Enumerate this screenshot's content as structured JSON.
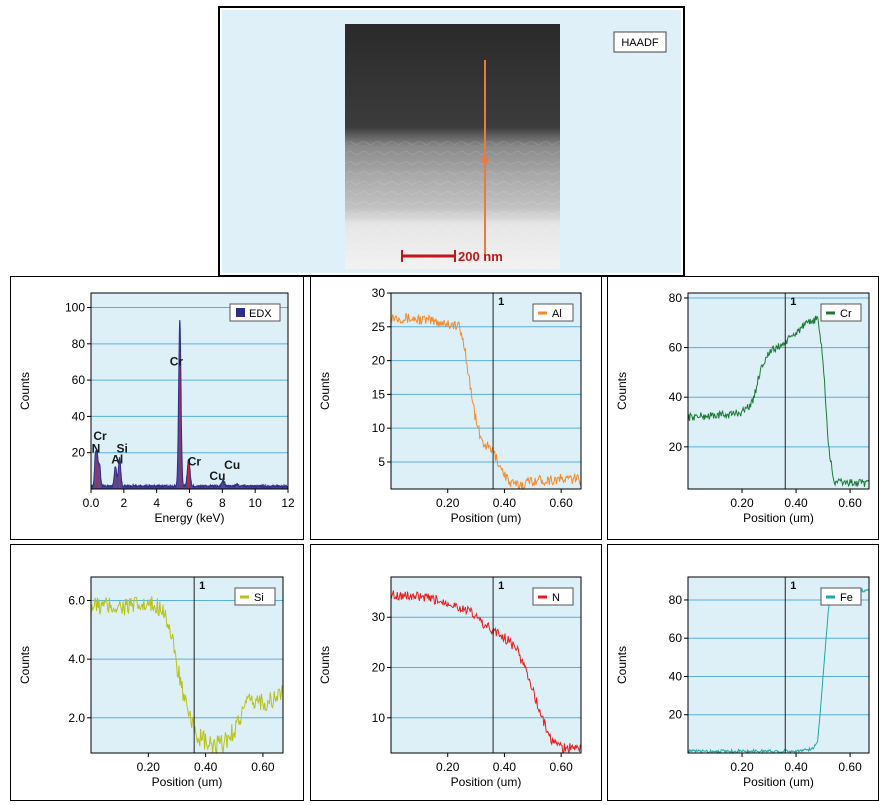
{
  "image_panel": {
    "badge": "HAADF",
    "scalebar": "200 nm"
  },
  "chart_data": [
    {
      "id": "edx",
      "type": "line",
      "series": [
        {
          "name": "EDX",
          "color": "#2e2e8a"
        }
      ],
      "xlabel": "Energy (keV)",
      "ylabel": "Counts",
      "xlim": [
        0,
        12
      ],
      "ylim": [
        0,
        108
      ],
      "xticks": [
        0,
        2,
        4,
        6,
        8,
        10,
        12
      ],
      "xtick_labels": [
        "0.0",
        "2",
        "4",
        "6",
        "8",
        "10",
        "12"
      ],
      "yticks": [
        20,
        40,
        60,
        80,
        100
      ],
      "ytick_labels": [
        "20",
        "40",
        "60",
        "80",
        "100"
      ],
      "peaks": [
        {
          "x": 0.28,
          "y": 18,
          "w": 0.06
        },
        {
          "x": 0.39,
          "y": 14,
          "w": 0.05
        },
        {
          "x": 0.52,
          "y": 12,
          "w": 0.06
        },
        {
          "x": 1.49,
          "y": 11,
          "w": 0.07
        },
        {
          "x": 1.74,
          "y": 16,
          "w": 0.07
        },
        {
          "x": 5.41,
          "y": 92,
          "w": 0.07
        },
        {
          "x": 5.95,
          "y": 15,
          "w": 0.08
        },
        {
          "x": 8.05,
          "y": 3,
          "w": 0.09
        },
        {
          "x": 8.9,
          "y": 1,
          "w": 0.09
        }
      ],
      "element_labels": [
        {
          "text": "Cr",
          "x": 0.55,
          "y": 27
        },
        {
          "text": "N",
          "x": 0.3,
          "y": 20
        },
        {
          "text": "Si",
          "x": 1.9,
          "y": 20
        },
        {
          "text": "Al",
          "x": 1.6,
          "y": 14
        },
        {
          "text": "Cr",
          "x": 5.2,
          "y": 68
        },
        {
          "text": "Cr",
          "x": 6.3,
          "y": 13
        },
        {
          "text": "Cu",
          "x": 8.6,
          "y": 11
        },
        {
          "text": "Cu",
          "x": 7.7,
          "y": 5
        }
      ],
      "legend_position": "top-right"
    },
    {
      "id": "al",
      "type": "line",
      "series": [
        {
          "name": "Al",
          "color": "#f58a2a"
        }
      ],
      "xlabel": "Position (um)",
      "ylabel": "Counts",
      "xlim": [
        0,
        0.67
      ],
      "ylim": [
        1,
        30
      ],
      "xticks": [
        0.2,
        0.4,
        0.6
      ],
      "xtick_labels": [
        "0.20",
        "0.40",
        "0.60"
      ],
      "yticks": [
        5,
        10,
        15,
        20,
        25,
        30
      ],
      "ytick_labels": [
        "5",
        "10",
        "15",
        "20",
        "25",
        "30"
      ],
      "profile": [
        [
          0,
          26.5
        ],
        [
          0.12,
          26
        ],
        [
          0.2,
          25.5
        ],
        [
          0.24,
          25
        ],
        [
          0.26,
          22
        ],
        [
          0.28,
          16
        ],
        [
          0.3,
          11
        ],
        [
          0.32,
          8
        ],
        [
          0.36,
          6.5
        ],
        [
          0.39,
          4
        ],
        [
          0.42,
          1.8
        ],
        [
          0.45,
          1.5
        ],
        [
          0.5,
          2.3
        ],
        [
          0.67,
          2.5
        ]
      ],
      "noise": 0.8,
      "cursor": {
        "label": "1",
        "x": 0.36
      },
      "legend_position": "top-right"
    },
    {
      "id": "cr",
      "type": "line",
      "series": [
        {
          "name": "Cr",
          "color": "#1e7a36"
        }
      ],
      "xlabel": "Position (um)",
      "ylabel": "Counts",
      "xlim": [
        0,
        0.67
      ],
      "ylim": [
        3,
        82
      ],
      "xticks": [
        0.2,
        0.4,
        0.6
      ],
      "xtick_labels": [
        "0.20",
        "0.40",
        "0.60"
      ],
      "yticks": [
        20,
        40,
        60,
        80
      ],
      "ytick_labels": [
        "20",
        "40",
        "60",
        "80"
      ],
      "profile": [
        [
          0,
          32
        ],
        [
          0.15,
          33
        ],
        [
          0.2,
          34
        ],
        [
          0.24,
          38
        ],
        [
          0.27,
          52
        ],
        [
          0.3,
          58
        ],
        [
          0.36,
          62
        ],
        [
          0.42,
          68
        ],
        [
          0.48,
          72
        ],
        [
          0.5,
          55
        ],
        [
          0.52,
          20
        ],
        [
          0.54,
          6
        ],
        [
          0.67,
          5
        ]
      ],
      "noise": 1.6,
      "cursor": {
        "label": "1",
        "x": 0.36
      },
      "legend_position": "top-right"
    },
    {
      "id": "si",
      "type": "line",
      "series": [
        {
          "name": "Si",
          "color": "#b8c21a"
        }
      ],
      "xlabel": "Position (um)",
      "ylabel": "Counts",
      "xlim": [
        0,
        0.67
      ],
      "ylim": [
        0.8,
        6.8
      ],
      "xticks": [
        0.2,
        0.4,
        0.6
      ],
      "xtick_labels": [
        "0.20",
        "0.40",
        "0.60"
      ],
      "yticks": [
        2,
        4,
        6
      ],
      "ytick_labels": [
        "2.0",
        "4.0",
        "6.0"
      ],
      "profile": [
        [
          0,
          5.8
        ],
        [
          0.1,
          5.8
        ],
        [
          0.25,
          5.8
        ],
        [
          0.27,
          5.2
        ],
        [
          0.3,
          3.8
        ],
        [
          0.34,
          2.0
        ],
        [
          0.38,
          1.3
        ],
        [
          0.42,
          1.0
        ],
        [
          0.46,
          1.1
        ],
        [
          0.5,
          1.6
        ],
        [
          0.54,
          2.4
        ],
        [
          0.58,
          2.6
        ],
        [
          0.62,
          2.5
        ],
        [
          0.67,
          2.9
        ]
      ],
      "noise": 0.35,
      "cursor": {
        "label": "1",
        "x": 0.36
      },
      "legend_position": "top-right"
    },
    {
      "id": "n",
      "type": "line",
      "series": [
        {
          "name": "N",
          "color": "#e81e1e"
        }
      ],
      "xlabel": "Position (um)",
      "ylabel": "Counts",
      "xlim": [
        0,
        0.67
      ],
      "ylim": [
        3,
        38
      ],
      "xticks": [
        0.2,
        0.4,
        0.6
      ],
      "xtick_labels": [
        "0.20",
        "0.40",
        "0.60"
      ],
      "yticks": [
        10,
        20,
        30
      ],
      "ytick_labels": [
        "10",
        "20",
        "30"
      ],
      "profile": [
        [
          0,
          34.5
        ],
        [
          0.1,
          34
        ],
        [
          0.2,
          33
        ],
        [
          0.28,
          31
        ],
        [
          0.34,
          28
        ],
        [
          0.4,
          26
        ],
        [
          0.44,
          24
        ],
        [
          0.48,
          19
        ],
        [
          0.52,
          12
        ],
        [
          0.56,
          6
        ],
        [
          0.6,
          4
        ],
        [
          0.67,
          4
        ]
      ],
      "noise": 1.0,
      "cursor": {
        "label": "1",
        "x": 0.36
      },
      "legend_position": "top-right"
    },
    {
      "id": "fe",
      "type": "line",
      "series": [
        {
          "name": "Fe",
          "color": "#1eaaa2"
        }
      ],
      "xlabel": "Position (um)",
      "ylabel": "Counts",
      "xlim": [
        0,
        0.67
      ],
      "ylim": [
        0,
        92
      ],
      "xticks": [
        0.2,
        0.4,
        0.6
      ],
      "xtick_labels": [
        "0.20",
        "0.40",
        "0.60"
      ],
      "yticks": [
        20,
        40,
        60,
        80
      ],
      "ytick_labels": [
        "20",
        "40",
        "60",
        "80"
      ],
      "profile": [
        [
          0,
          1
        ],
        [
          0.4,
          1
        ],
        [
          0.46,
          2
        ],
        [
          0.48,
          6
        ],
        [
          0.5,
          40
        ],
        [
          0.52,
          76
        ],
        [
          0.54,
          84
        ],
        [
          0.67,
          85
        ]
      ],
      "noise": 0.8,
      "cursor": {
        "label": "1",
        "x": 0.36
      },
      "legend_position": "top-right"
    }
  ]
}
